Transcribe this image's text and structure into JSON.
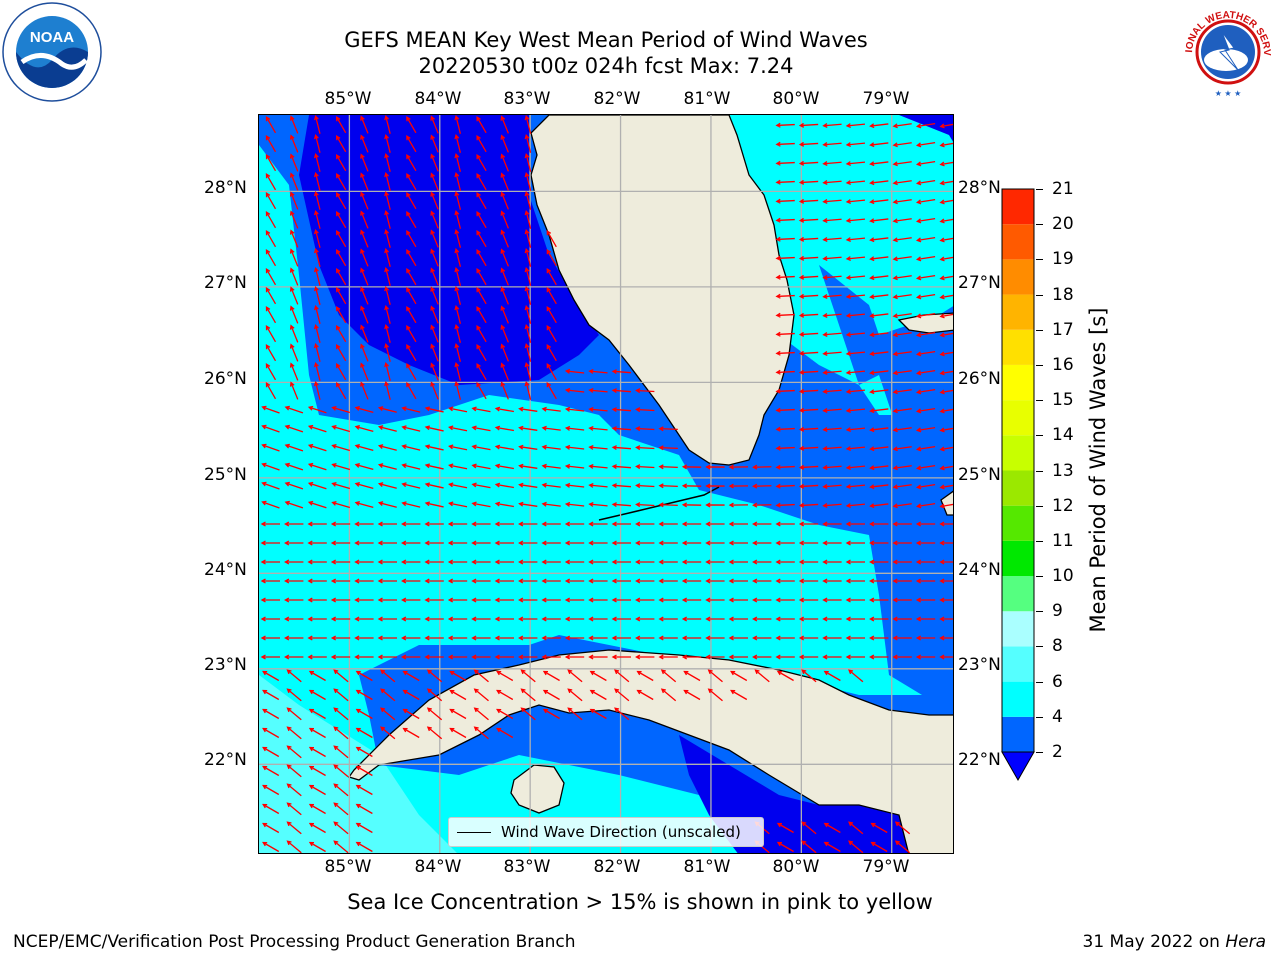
{
  "title": {
    "line1": "GEFS MEAN Key West Mean Period of Wind Waves",
    "line2": "20220530 t00z 024h fcst   Max: 7.24"
  },
  "logos": {
    "noaa_text": "NOAA",
    "noaa_ring": "NATIONAL OCEANIC AND ATMOSPHERIC ADMINISTRATION · U.S. DEPARTMENT OF COMMERCE",
    "nws_ring": "NATIONAL WEATHER SERVICE"
  },
  "map": {
    "lon_labels": [
      "85°W",
      "84°W",
      "83°W",
      "82°W",
      "81°W",
      "80°W",
      "79°W"
    ],
    "lat_labels": [
      "28°N",
      "27°N",
      "26°N",
      "25°N",
      "24°N",
      "23°N",
      "22°N"
    ],
    "lon_range": [
      -86,
      -78.3
    ],
    "lat_range": [
      21.05,
      28.8
    ],
    "colors": {
      "land": "#eeecdc",
      "gridline": "#b0b0b0",
      "arrow": "#ff0000",
      "period_2_4": "#0066ff",
      "period_4_6": "#00ffff",
      "period_6_8": "#55ffff",
      "period_below_2": "#0000ee",
      "coast": "#000000"
    },
    "legend_label": "Wind Wave Direction (unscaled)"
  },
  "colorbar": {
    "label": "Mean Period of Wind Waves [s]",
    "ticks": [
      "2",
      "4",
      "6",
      "8",
      "9",
      "10",
      "11",
      "12",
      "13",
      "14",
      "15",
      "16",
      "17",
      "18",
      "19",
      "20",
      "21"
    ],
    "colors": [
      "#0066ff",
      "#00ffff",
      "#55ffff",
      "#aaffff",
      "#55ff80",
      "#00e800",
      "#55e800",
      "#9be800",
      "#c8ff00",
      "#e8ff00",
      "#ffff00",
      "#ffe000",
      "#ffb400",
      "#ff8c00",
      "#ff5a00",
      "#ff2800"
    ],
    "extend_color": "#0000ff"
  },
  "note": "Sea Ice Concentration > 15% is shown in pink to yellow",
  "footer": {
    "left": "NCEP/EMC/Verification Post Processing Product Generation Branch",
    "right_prefix": "31 May 2022 on ",
    "right_machine": "Hera"
  }
}
